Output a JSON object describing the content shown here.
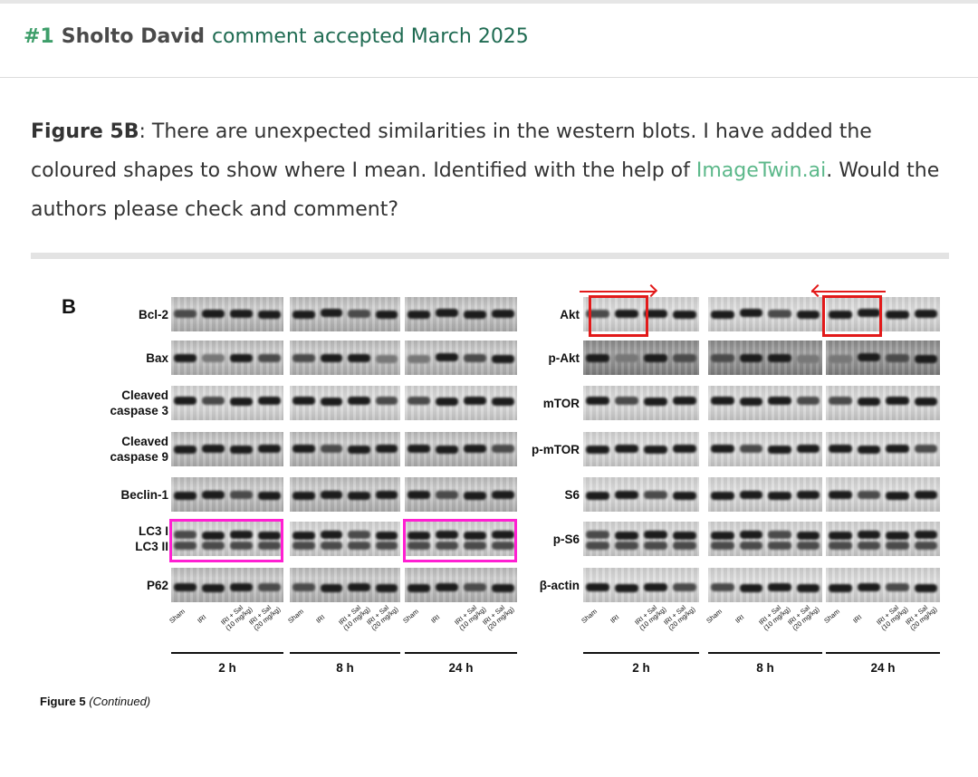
{
  "header": {
    "number": "#1",
    "author": "Sholto David",
    "status": "comment accepted March 2025"
  },
  "comment": {
    "lead": "Figure 5B",
    "text_before_link": ": There are unexpected similarities in the western blots. I have added the coloured shapes to show where I mean. Identified with the help of ",
    "link": "ImageTwin.ai",
    "text_after_link": ". Would the authors please check and comment?"
  },
  "figure": {
    "panel_letter": "B",
    "left_rows": [
      "Bcl-2",
      "Bax",
      "Cleaved\ncaspase 3",
      "Cleaved\ncaspase 9",
      "Beclin-1",
      "LC3 I\nLC3 II",
      "P62"
    ],
    "right_rows": [
      "Akt",
      "p-Akt",
      "mTOR",
      "p-mTOR",
      "S6",
      "p-S6",
      "β-actin"
    ],
    "lanes": [
      "Sham",
      "IRI",
      "IRI + Sal\n(10 mg/kg)",
      "IRI + Sal\n(20 mg/kg)"
    ],
    "timepoints": [
      "2 h",
      "8 h",
      "24 h"
    ],
    "caption_label": "Figure 5",
    "caption_note": "(Continued)",
    "highlight_colors": {
      "magenta": "#ff1fd2",
      "red": "#e21a1a"
    }
  }
}
